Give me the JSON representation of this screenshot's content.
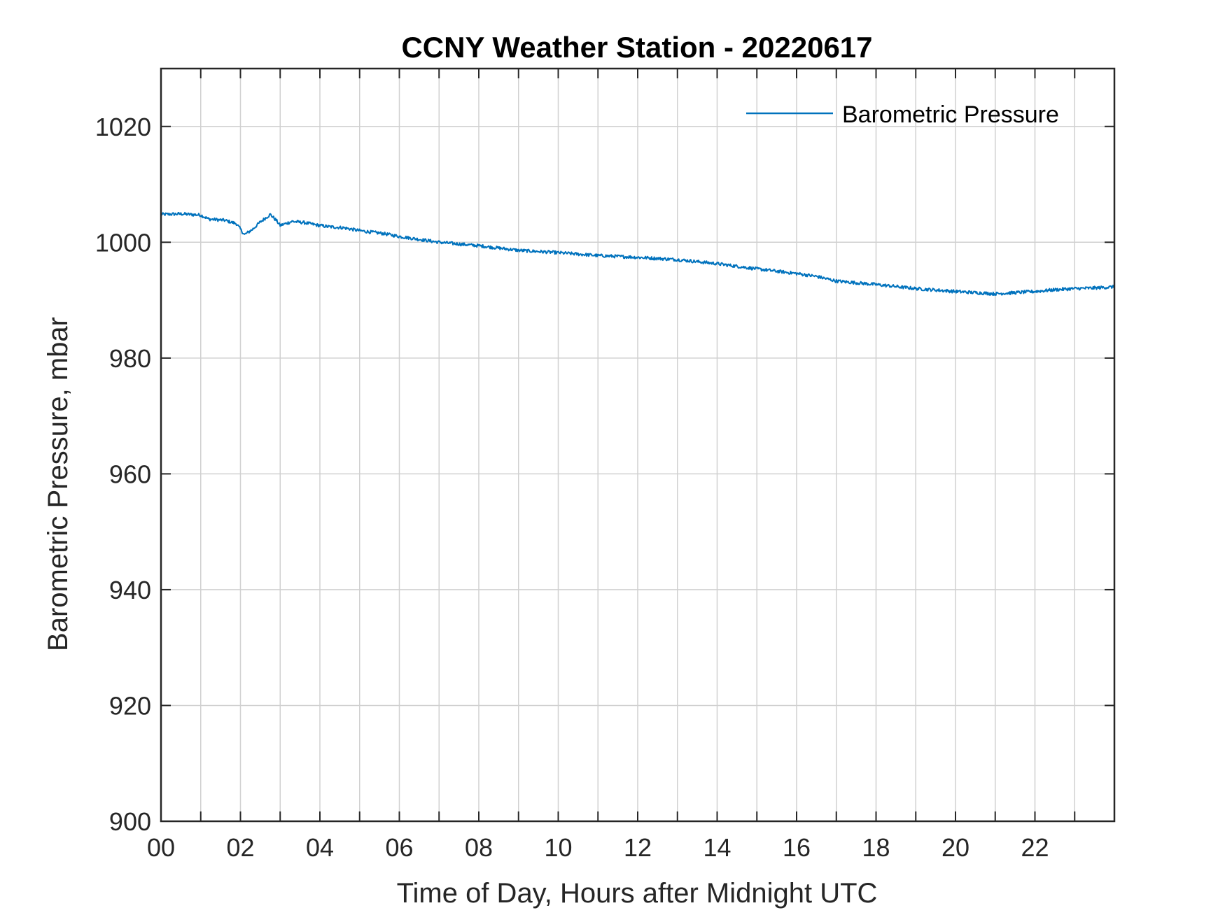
{
  "chart_data": {
    "type": "line",
    "title": "CCNY Weather Station - 20220617",
    "xlabel": "Time of Day, Hours after Midnight UTC",
    "ylabel": "Barometric Pressure, mbar",
    "xlim": [
      0,
      24
    ],
    "ylim": [
      900,
      1030
    ],
    "xticks": [
      0,
      2,
      4,
      6,
      8,
      10,
      12,
      14,
      16,
      18,
      20,
      22
    ],
    "xtick_labels": [
      "00",
      "02",
      "04",
      "06",
      "08",
      "10",
      "12",
      "14",
      "16",
      "18",
      "20",
      "22"
    ],
    "minor_x_gridlines": [
      1,
      3,
      5,
      7,
      9,
      11,
      13,
      15,
      17,
      19,
      21,
      23
    ],
    "yticks": [
      900,
      920,
      940,
      960,
      980,
      1000,
      1020
    ],
    "ytick_labels": [
      "900",
      "920",
      "940",
      "960",
      "980",
      "1000",
      "1020"
    ],
    "grid": true,
    "legend_position": "top-right",
    "series": [
      {
        "name": "Barometric Pressure",
        "color": "#0072BD",
        "x": [
          0,
          0.5,
          1.0,
          1.2,
          1.6,
          1.9,
          2.1,
          2.3,
          2.5,
          2.75,
          2.9,
          3.0,
          3.3,
          3.6,
          3.9,
          4.2,
          4.6,
          5.0,
          5.6,
          6.0,
          7.0,
          8.0,
          9.0,
          10.0,
          11.0,
          12.0,
          13.0,
          14.0,
          15.0,
          16.0,
          16.5,
          17.0,
          18.0,
          19.0,
          20.0,
          20.5,
          21.0,
          21.5,
          22.0,
          22.5,
          23.0,
          23.5,
          24.0
        ],
        "y": [
          1004.8,
          1004.9,
          1004.7,
          1004.0,
          1003.8,
          1003.2,
          1001.3,
          1002.2,
          1003.5,
          1004.8,
          1003.8,
          1002.9,
          1003.6,
          1003.4,
          1003.0,
          1002.7,
          1002.5,
          1002.0,
          1001.5,
          1001.0,
          1000.0,
          999.4,
          998.6,
          998.2,
          997.7,
          997.4,
          997.0,
          996.3,
          995.4,
          994.6,
          994.1,
          993.3,
          992.7,
          992.0,
          991.5,
          991.3,
          991.1,
          991.3,
          991.5,
          991.8,
          992.0,
          992.1,
          992.3
        ]
      }
    ]
  }
}
